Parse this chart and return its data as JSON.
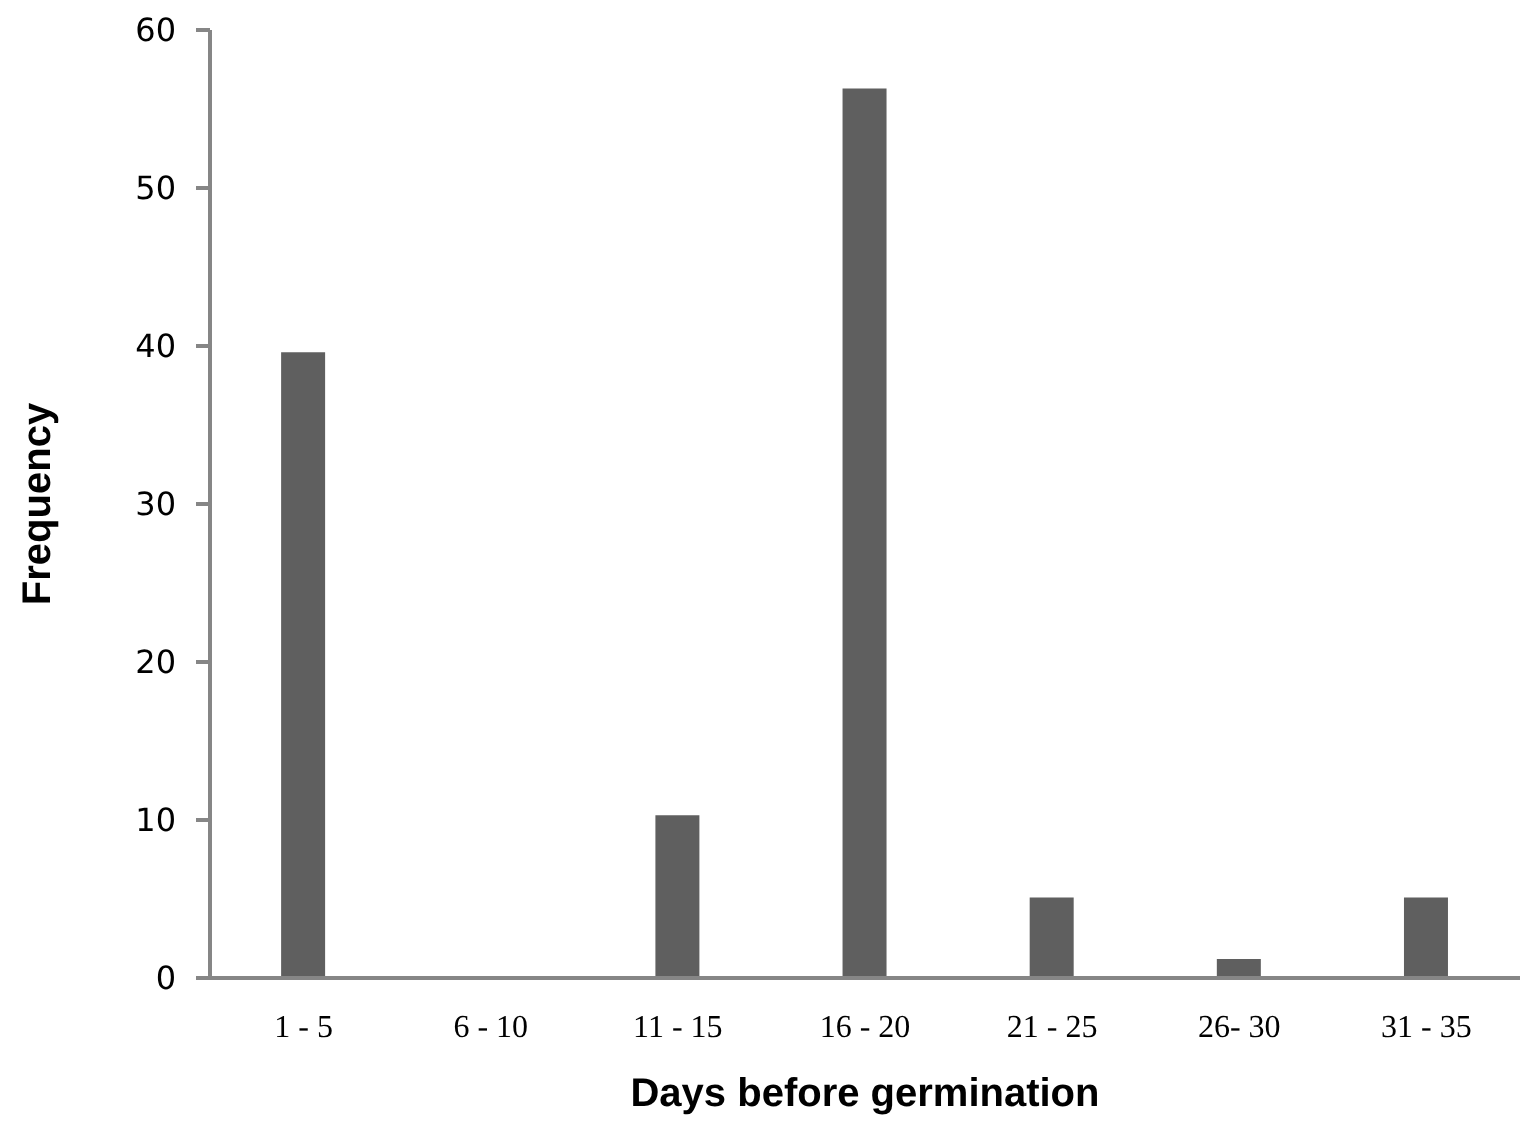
{
  "chart_data": {
    "type": "bar",
    "xlabel": "Days before germination",
    "ylabel": "Frequency",
    "categories": [
      "1 - 5",
      "6 - 10",
      "11 - 15",
      "16 - 20",
      "21 - 25",
      "26- 30",
      "31 - 35"
    ],
    "values": [
      39.6,
      0,
      10.3,
      56.3,
      5.1,
      1.2,
      5.1
    ],
    "color": "#5f5f5f",
    "ylim": [
      0,
      60
    ],
    "yticks": [
      0,
      10,
      20,
      30,
      40,
      50,
      60
    ],
    "grid": false,
    "legend": false
  }
}
